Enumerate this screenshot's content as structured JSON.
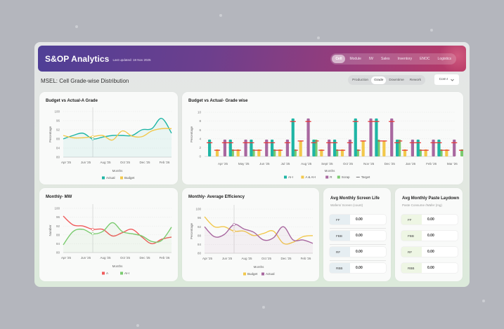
{
  "header": {
    "title": "S&OP Analytics",
    "last_updated": "Last updated: 18 Nov 2025",
    "nav": [
      {
        "label": "Cell",
        "active": true
      },
      {
        "label": "Module",
        "active": false
      },
      {
        "label": "IW",
        "active": false
      },
      {
        "label": "Sales",
        "active": false
      },
      {
        "label": "Inventory",
        "active": false
      },
      {
        "label": "ENOC",
        "active": false
      },
      {
        "label": "Logistics",
        "active": false
      }
    ]
  },
  "subbar": {
    "page_title": "MSEL: Cell Grade-wise Distribution",
    "segments": [
      {
        "label": "Production",
        "active": false
      },
      {
        "label": "Grade",
        "active": true
      },
      {
        "label": "Downtime",
        "active": false
      },
      {
        "label": "Rework",
        "active": false
      }
    ],
    "dropdown_value": "Com I",
    "dropdown_icon": "chevron-down-icon"
  },
  "colors": {
    "teal": "#1fb5a5",
    "yellow": "#f2c84b",
    "purple": "#a8679f",
    "green": "#7acb6e",
    "red": "#f05a5a",
    "target": "#e53b3b"
  },
  "chart_data": [
    {
      "id": "a_grade",
      "type": "line",
      "title": "Budget vs Actual-A Grade",
      "xlabel": "Months",
      "ylabel": "Percentage",
      "ylim": [
        80,
        100
      ],
      "yticks": [
        80,
        84,
        88,
        92,
        96,
        100
      ],
      "categories": [
        "Apr '25",
        "May '25",
        "Jun '25",
        "Jul '25",
        "Aug '25",
        "Sep '25",
        "Oct '25",
        "Nov '25",
        "Dec '25",
        "Jan '26",
        "Feb '26",
        "Mar '26"
      ],
      "xtick_labels": [
        "Apr '25",
        "Jun '25",
        "Aug '25",
        "Oct '25",
        "Dec '25",
        "Feb '26"
      ],
      "series": [
        {
          "name": "Actual",
          "color": "#1fb5a5",
          "values": [
            88,
            89.5,
            90.5,
            88,
            88.8,
            89.5,
            89.5,
            89.5,
            92,
            92.5,
            97,
            90.5
          ],
          "fill": true
        },
        {
          "name": "Budget",
          "color": "#f2c84b",
          "values": [
            89.5,
            88.5,
            88.5,
            89,
            89.5,
            87.5,
            91.5,
            89.2,
            89,
            91.5,
            92.5,
            92.5
          ]
        }
      ],
      "legend": "bottom",
      "grid": true
    },
    {
      "id": "grade_wise",
      "type": "bar",
      "title": "Budget vs Actual- Grade wise",
      "xlabel": "Months",
      "ylabel": "Percentage",
      "ylim": [
        0,
        10
      ],
      "yticks": [
        0,
        2,
        4,
        6,
        8,
        10
      ],
      "categories": [
        "Apr '25",
        "May '25",
        "Jun '25",
        "Jul '25",
        "Aug '25",
        "Sept '25",
        "Oct '25",
        "Nov '25",
        "Dec '25",
        "Jan '26",
        "Feb '26",
        "Mar '26"
      ],
      "series": [
        {
          "name": "AI-I",
          "color": "#1fb5a5",
          "values": [
            3.8,
            3.8,
            3.8,
            3.8,
            8.6,
            3.8,
            3.8,
            8.6,
            8.6,
            3.8,
            3.8,
            3.8
          ],
          "target": [
            3.1,
            3.1,
            3.1,
            3.1,
            7.9,
            3.1,
            3.1,
            7.9,
            7.9,
            3.1,
            3.1,
            3.1
          ]
        },
        {
          "name": "A & AI-I",
          "color": "#f2c84b",
          "values": [
            1.6,
            1.6,
            1.6,
            1.6,
            3.6,
            1.6,
            1.6,
            3.6,
            3.6,
            1.6,
            1.6,
            1.6
          ],
          "target": [
            1.4,
            1.4,
            1.4,
            1.4,
            3.5,
            1.4,
            1.4,
            3.5,
            3.5,
            1.4,
            1.4,
            1.4
          ]
        },
        {
          "name": "R",
          "color": "#a8679f",
          "values": [
            3.8,
            3.8,
            3.8,
            3.8,
            8.6,
            3.8,
            3.8,
            8.6,
            8.6,
            3.8,
            3.8,
            3.8
          ],
          "target": [
            3.1,
            3.1,
            3.1,
            3.1,
            7.9,
            3.1,
            3.1,
            7.9,
            7.9,
            3.1,
            3.1,
            3.1
          ]
        },
        {
          "name": "Scrap",
          "color": "#7acb6e",
          "values": [
            1.6,
            1.6,
            1.6,
            1.6,
            3.8,
            1.6,
            1.6,
            3.8,
            3.8,
            1.6,
            1.6,
            1.6
          ],
          "target": [
            1.4,
            1.4,
            1.4,
            1.4,
            3.5,
            1.4,
            1.4,
            3.5,
            3.5,
            1.4,
            1.4,
            1.4
          ]
        }
      ],
      "target_label": "Target",
      "legend": "bottom",
      "grid": true
    },
    {
      "id": "mw",
      "type": "line",
      "title": "Monthly- MW",
      "xlabel": "Months",
      "ylabel": "Number",
      "ylim": [
        80,
        100
      ],
      "yticks": [
        80,
        84,
        88,
        92,
        96,
        100
      ],
      "categories": [
        "Apr '25",
        "May '25",
        "Jun '25",
        "Jul '25",
        "Aug '25",
        "Sep '25",
        "Oct '25",
        "Nov '25",
        "Dec '25",
        "Jan '26",
        "Feb '26",
        "Mar '26"
      ],
      "xtick_labels": [
        "Apr '25",
        "Jun '25",
        "Aug '25",
        "Oct '25",
        "Dec '25",
        "Feb '26"
      ],
      "series": [
        {
          "name": "A",
          "color": "#f05a5a",
          "values": [
            96.5,
            92.5,
            92,
            90.5,
            90.5,
            87.5,
            89,
            90.5,
            87,
            84,
            86,
            87
          ]
        },
        {
          "name": "AI-I",
          "color": "#7acb6e",
          "values": [
            83.5,
            89.5,
            90.5,
            88.5,
            89.5,
            93.5,
            89.5,
            88.5,
            87.5,
            85,
            85.5,
            91.5
          ],
          "fill": true
        }
      ],
      "legend": "bottom",
      "grid": true
    },
    {
      "id": "efficiency",
      "type": "line",
      "title": "Monthly- Average Efficiency",
      "xlabel": "Months",
      "ylabel": "Percentage",
      "ylim": [
        80,
        100
      ],
      "yticks": [
        80,
        84,
        88,
        92,
        96,
        100
      ],
      "categories": [
        "Apr '25",
        "May '25",
        "Jun '25",
        "Jul '25",
        "Aug '25",
        "Sep '25",
        "Oct '25",
        "Nov '25",
        "Dec '25",
        "Jan '26",
        "Feb '26",
        "Mar '26"
      ],
      "xtick_labels": [
        "Apr '25",
        "Jun '25",
        "Aug '25",
        "Oct '25",
        "Dec '25",
        "Feb '26"
      ],
      "series": [
        {
          "name": "Budget",
          "color": "#f2c84b",
          "values": [
            96.5,
            92,
            92,
            90,
            90,
            88,
            89,
            90,
            84.5,
            85,
            87.5,
            88
          ]
        },
        {
          "name": "Actual",
          "color": "#a8679f",
          "values": [
            92,
            87.5,
            88.5,
            93,
            91,
            89.5,
            86,
            87,
            92,
            86,
            86,
            84.5
          ],
          "fill": true
        }
      ],
      "legend": "bottom",
      "grid": true
    }
  ],
  "kpis": [
    {
      "title": "Avg Monthly Screen Life",
      "subtitle": "Wafers/ Screen (count)",
      "rows": [
        {
          "label": "FF",
          "value": "0.00"
        },
        {
          "label": "FBB",
          "value": "0.00"
        },
        {
          "label": "RF",
          "value": "0.00"
        },
        {
          "label": "RBB",
          "value": "0.00"
        }
      ]
    },
    {
      "title": "Avg Monthly Paste Laydown",
      "subtitle": "Paste Consume /Wafer (mg)",
      "rows": [
        {
          "label": "FF",
          "value": "0.00"
        },
        {
          "label": "FBB",
          "value": "0.00"
        },
        {
          "label": "RF",
          "value": "0.00"
        },
        {
          "label": "RBB",
          "value": "0.00"
        }
      ]
    }
  ]
}
